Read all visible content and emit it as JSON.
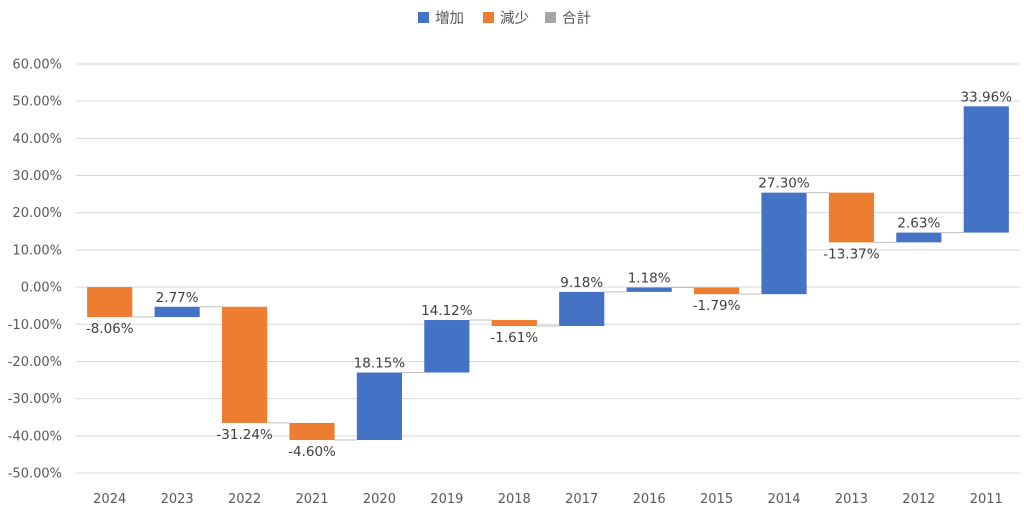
{
  "chart_data": {
    "type": "waterfall",
    "categories": [
      "2024",
      "2023",
      "2022",
      "2021",
      "2020",
      "2019",
      "2018",
      "2017",
      "2016",
      "2015",
      "2014",
      "2013",
      "2012",
      "2011"
    ],
    "values": [
      -8.06,
      2.77,
      -31.24,
      -4.6,
      18.15,
      14.12,
      -1.61,
      9.18,
      1.18,
      -1.79,
      27.3,
      -13.37,
      2.63,
      33.96
    ],
    "value_labels": [
      "-8.06%",
      "2.77%",
      "-31.24%",
      "-4.60%",
      "18.15%",
      "14.12%",
      "-1.61%",
      "9.18%",
      "1.18%",
      "-1.79%",
      "27.30%",
      "-13.37%",
      "2.63%",
      "33.96%"
    ],
    "y_ticks": [
      "60.00%",
      "50.00%",
      "40.00%",
      "30.00%",
      "20.00%",
      "10.00%",
      "0.00%",
      "-10.00%",
      "-20.00%",
      "-30.00%",
      "-40.00%",
      "-50.00%"
    ],
    "ylim": [
      -50,
      60
    ],
    "grid": true,
    "legend": {
      "position": "top",
      "entries": [
        {
          "label": "増加",
          "color": "#4472C4"
        },
        {
          "label": "減少",
          "color": "#ED7D31"
        },
        {
          "label": "合計",
          "color": "#A5A5A5"
        }
      ]
    },
    "colors": {
      "increase": "#4472C4",
      "decrease": "#ED7D31",
      "total": "#A5A5A5",
      "grid": "#D9D9D9",
      "connector": "#BFBFBF"
    }
  }
}
